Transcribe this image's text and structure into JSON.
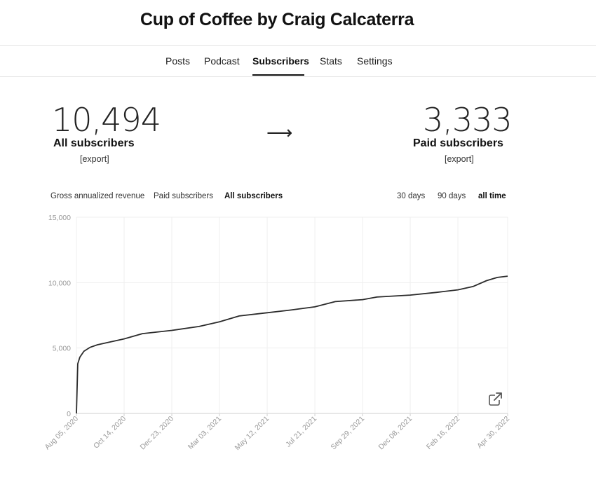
{
  "header": {
    "title": "Cup of Coffee by Craig Calcaterra"
  },
  "nav": {
    "tabs": [
      {
        "label": "Posts"
      },
      {
        "label": "Podcast"
      },
      {
        "label": "Subscribers",
        "active": true
      },
      {
        "label": "Stats"
      },
      {
        "label": "Settings"
      }
    ]
  },
  "stats": {
    "all": {
      "value": "10,494",
      "label": "All subscribers",
      "export": "[export]"
    },
    "arrow": "⟶",
    "paid": {
      "value": "3,333",
      "label": "Paid subscribers",
      "export": "[export]"
    }
  },
  "chart_tabs": {
    "metrics": [
      {
        "label": "Gross annualized revenue"
      },
      {
        "label": "Paid subscribers"
      },
      {
        "label": "All subscribers",
        "active": true
      }
    ],
    "ranges": [
      {
        "label": "30 days"
      },
      {
        "label": "90 days"
      },
      {
        "label": "all time",
        "active": true
      }
    ]
  },
  "chart_data": {
    "type": "line",
    "title": "",
    "xlabel": "",
    "ylabel": "",
    "ylim": [
      0,
      15000
    ],
    "y_ticks": [
      "0",
      "5,000",
      "10,000",
      "15,000"
    ],
    "x_ticks": [
      "Aug 05, 2020",
      "Oct 14, 2020",
      "Dec 23, 2020",
      "Mar 03, 2021",
      "May 12, 2021",
      "Jul 21, 2021",
      "Sep 29, 2021",
      "Dec 08, 2021",
      "Feb 16, 2022",
      "Apr 30, 2022"
    ],
    "grid": true,
    "series": [
      {
        "values_x": [
          "Aug 03, 2020",
          "Aug 05, 2020",
          "Aug 07, 2020",
          "Aug 10, 2020",
          "Aug 16, 2020",
          "Aug 25, 2020",
          "Sep 05, 2020",
          "Sep 20, 2020",
          "Oct 14, 2020",
          "Nov 10, 2020",
          "Dec 23, 2020",
          "Feb 01, 2021",
          "Mar 03, 2021",
          "Apr 01, 2021",
          "May 12, 2021",
          "Jun 15, 2021",
          "Jul 21, 2021",
          "Aug 20, 2021",
          "Sep 29, 2021",
          "Oct 20, 2021",
          "Dec 08, 2021",
          "Jan 15, 2022",
          "Feb 16, 2022",
          "Mar 10, 2022",
          "Mar 30, 2022",
          "Apr 15, 2022",
          "Apr 30, 2022"
        ],
        "values": [
          0,
          0,
          3800,
          4300,
          4750,
          5050,
          5250,
          5420,
          5700,
          6100,
          6350,
          6650,
          7000,
          7450,
          7700,
          7900,
          8150,
          8550,
          8700,
          8900,
          9050,
          9250,
          9450,
          9700,
          10150,
          10400,
          10494
        ]
      }
    ]
  },
  "icons": {
    "expand": "external-link-icon"
  }
}
